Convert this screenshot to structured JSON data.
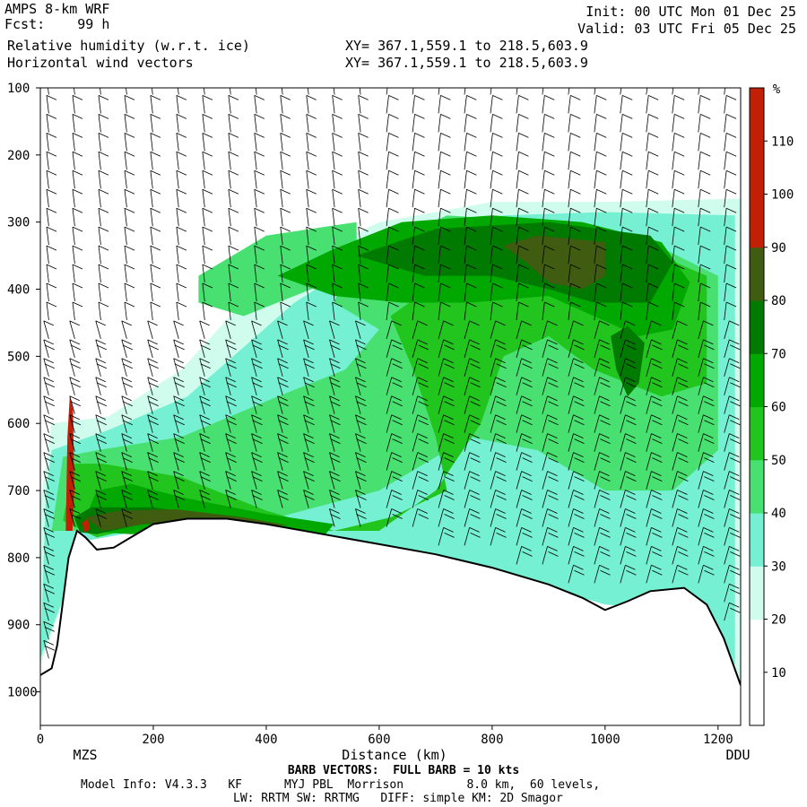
{
  "header": {
    "model": "AMPS 8-km WRF",
    "forecast": "Fcst:    99 h",
    "field1": "Relative humidity (w.r.t. ice)",
    "field2": "Horizontal wind vectors",
    "init": "Init: 00 UTC Mon 01 Dec 25",
    "valid": "Valid: 03 UTC Fri 05 Dec 25",
    "xy1": "XY= 367.1,559.1 to 218.5,603.9",
    "xy2": "XY= 367.1,559.1 to 218.5,603.9"
  },
  "footer": {
    "barb_note": "BARB VECTORS:  FULL BARB = 10 kts",
    "model_info_1": "Model Info: V4.3.3   KF      MYJ PBL  Morrison         8.0 km,  60 levels,",
    "model_info_2": "LW: RRTM SW: RRTMG   DIFF: simple KM: 2D Smagor"
  },
  "chart_data": {
    "type": "heatmap",
    "title": "Relative humidity (w.r.t. ice)",
    "xlabel": "Distance (km)",
    "ylabel": "",
    "xlim": [
      0,
      1240
    ],
    "ylim": [
      1050,
      100
    ],
    "x_ticks": [
      "0",
      "200",
      "400",
      "600",
      "800",
      "1000",
      "1200"
    ],
    "y_ticks": [
      "100",
      "200",
      "300",
      "400",
      "500",
      "600",
      "700",
      "800",
      "900",
      "1000"
    ],
    "x_endpoints": {
      "left": "MZS",
      "right": "DDU"
    },
    "colorbar": {
      "unit": "%",
      "ticks": [
        "10",
        "20",
        "30",
        "40",
        "50",
        "60",
        "70",
        "80",
        "90",
        "100",
        "110"
      ],
      "levels": [
        0,
        30,
        40,
        50,
        60,
        70,
        80,
        90,
        100,
        110
      ],
      "colors": [
        "#ffffff",
        "#cffced",
        "#75f0d2",
        "#48e070",
        "#22c41e",
        "#00a800",
        "#007a00",
        "#3f5c11",
        "#c22006"
      ]
    },
    "terrain_profile": [
      {
        "x": 0,
        "p": 975
      },
      {
        "x": 20,
        "p": 965
      },
      {
        "x": 30,
        "p": 930
      },
      {
        "x": 50,
        "p": 800
      },
      {
        "x": 65,
        "p": 760
      },
      {
        "x": 80,
        "p": 770
      },
      {
        "x": 100,
        "p": 788
      },
      {
        "x": 130,
        "p": 785
      },
      {
        "x": 160,
        "p": 770
      },
      {
        "x": 200,
        "p": 750
      },
      {
        "x": 260,
        "p": 742
      },
      {
        "x": 330,
        "p": 742
      },
      {
        "x": 400,
        "p": 750
      },
      {
        "x": 500,
        "p": 765
      },
      {
        "x": 600,
        "p": 780
      },
      {
        "x": 700,
        "p": 795
      },
      {
        "x": 800,
        "p": 815
      },
      {
        "x": 900,
        "p": 840
      },
      {
        "x": 960,
        "p": 860
      },
      {
        "x": 1000,
        "p": 878
      },
      {
        "x": 1040,
        "p": 865
      },
      {
        "x": 1080,
        "p": 850
      },
      {
        "x": 1140,
        "p": 845
      },
      {
        "x": 1180,
        "p": 870
      },
      {
        "x": 1210,
        "p": 920
      },
      {
        "x": 1240,
        "p": 990
      }
    ],
    "rh_regions": [
      {
        "rh": 35,
        "poly": [
          [
            0,
            960
          ],
          [
            0,
            720
          ],
          [
            20,
            600
          ],
          [
            120,
            590
          ],
          [
            250,
            520
          ],
          [
            400,
            380
          ],
          [
            600,
            300
          ],
          [
            800,
            270
          ],
          [
            1000,
            270
          ],
          [
            1240,
            265
          ],
          [
            1240,
            990
          ],
          [
            1180,
            870
          ],
          [
            1040,
            865
          ],
          [
            900,
            840
          ],
          [
            700,
            800
          ],
          [
            400,
            752
          ],
          [
            200,
            752
          ],
          [
            80,
            770
          ]
        ]
      },
      {
        "rh": 45,
        "poly": [
          [
            0,
            950
          ],
          [
            10,
            700
          ],
          [
            20,
            640
          ],
          [
            120,
            610
          ],
          [
            260,
            560
          ],
          [
            450,
            420
          ],
          [
            620,
            330
          ],
          [
            820,
            290
          ],
          [
            1000,
            285
          ],
          [
            1230,
            290
          ],
          [
            1230,
            960
          ],
          [
            1170,
            880
          ],
          [
            1000,
            870
          ],
          [
            800,
            820
          ],
          [
            600,
            790
          ],
          [
            400,
            757
          ],
          [
            200,
            757
          ],
          [
            80,
            775
          ]
        ]
      },
      {
        "rh": 55,
        "poly": [
          [
            20,
            760
          ],
          [
            40,
            650
          ],
          [
            100,
            640
          ],
          [
            250,
            620
          ],
          [
            420,
            560
          ],
          [
            540,
            520
          ],
          [
            600,
            460
          ],
          [
            520,
            420
          ],
          [
            560,
            350
          ],
          [
            720,
            290
          ],
          [
            900,
            300
          ],
          [
            1080,
            330
          ],
          [
            1200,
            380
          ],
          [
            1200,
            640
          ],
          [
            1120,
            700
          ],
          [
            1000,
            700
          ],
          [
            880,
            640
          ],
          [
            760,
            620
          ],
          [
            600,
            700
          ],
          [
            420,
            740
          ],
          [
            220,
            740
          ],
          [
            100,
            760
          ]
        ]
      },
      {
        "rh": 55,
        "poly": [
          [
            280,
            380
          ],
          [
            400,
            320
          ],
          [
            560,
            300
          ],
          [
            560,
            360
          ],
          [
            480,
            400
          ],
          [
            360,
            440
          ],
          [
            280,
            420
          ]
        ]
      },
      {
        "rh": 65,
        "poly": [
          [
            40,
            745
          ],
          [
            60,
            660
          ],
          [
            110,
            660
          ],
          [
            250,
            680
          ],
          [
            400,
            730
          ],
          [
            520,
            760
          ],
          [
            620,
            740
          ],
          [
            720,
            700
          ],
          [
            700,
            620
          ],
          [
            660,
            520
          ],
          [
            620,
            440
          ],
          [
            720,
            380
          ],
          [
            880,
            320
          ],
          [
            1040,
            330
          ],
          [
            1180,
            380
          ],
          [
            1180,
            540
          ],
          [
            1100,
            560
          ],
          [
            980,
            520
          ],
          [
            900,
            470
          ],
          [
            820,
            500
          ],
          [
            780,
            600
          ],
          [
            700,
            700
          ],
          [
            600,
            760
          ],
          [
            400,
            760
          ],
          [
            200,
            750
          ],
          [
            100,
            770
          ]
        ]
      },
      {
        "rh": 75,
        "poly": [
          [
            420,
            380
          ],
          [
            520,
            340
          ],
          [
            640,
            300
          ],
          [
            800,
            290
          ],
          [
            960,
            300
          ],
          [
            1100,
            330
          ],
          [
            1150,
            390
          ],
          [
            1120,
            460
          ],
          [
            1060,
            470
          ],
          [
            980,
            440
          ],
          [
            900,
            410
          ],
          [
            760,
            420
          ],
          [
            640,
            420
          ],
          [
            520,
            410
          ]
        ]
      },
      {
        "rh": 75,
        "poly": [
          [
            70,
            760
          ],
          [
            100,
            700
          ],
          [
            160,
            690
          ],
          [
            250,
            710
          ],
          [
            400,
            735
          ],
          [
            520,
            750
          ],
          [
            500,
            770
          ],
          [
            300,
            760
          ],
          [
            160,
            765
          ]
        ]
      },
      {
        "rh": 85,
        "poly": [
          [
            560,
            350
          ],
          [
            700,
            310
          ],
          [
            900,
            300
          ],
          [
            1080,
            320
          ],
          [
            1120,
            360
          ],
          [
            1080,
            420
          ],
          [
            980,
            420
          ],
          [
            900,
            400
          ],
          [
            800,
            380
          ],
          [
            680,
            380
          ]
        ]
      },
      {
        "rh": 85,
        "poly": [
          [
            60,
            740
          ],
          [
            90,
            725
          ],
          [
            200,
            725
          ],
          [
            320,
            740
          ],
          [
            460,
            760
          ],
          [
            520,
            775
          ],
          [
            450,
            775
          ],
          [
            300,
            752
          ],
          [
            180,
            750
          ],
          [
            100,
            765
          ],
          [
            70,
            762
          ]
        ]
      },
      {
        "rh": 85,
        "poly": [
          [
            1010,
            470
          ],
          [
            1040,
            455
          ],
          [
            1070,
            480
          ],
          [
            1060,
            540
          ],
          [
            1040,
            560
          ],
          [
            1020,
            520
          ]
        ]
      },
      {
        "rh": 95,
        "poly": [
          [
            820,
            335
          ],
          [
            880,
            320
          ],
          [
            940,
            325
          ],
          [
            1000,
            330
          ],
          [
            1000,
            380
          ],
          [
            960,
            400
          ],
          [
            900,
            390
          ],
          [
            860,
            360
          ]
        ]
      },
      {
        "rh": 95,
        "poly": [
          [
            80,
            740
          ],
          [
            140,
            730
          ],
          [
            240,
            728
          ],
          [
            360,
            740
          ],
          [
            440,
            752
          ],
          [
            330,
            750
          ],
          [
            200,
            748
          ],
          [
            110,
            760
          ]
        ]
      },
      {
        "rh": 115,
        "poly": [
          [
            45,
            760
          ],
          [
            48,
            620
          ],
          [
            52,
            560
          ],
          [
            58,
            580
          ],
          [
            60,
            700
          ],
          [
            57,
            760
          ]
        ]
      },
      {
        "rh": 115,
        "poly": [
          [
            74,
            748
          ],
          [
            84,
            742
          ],
          [
            88,
            758
          ],
          [
            78,
            762
          ]
        ]
      },
      {
        "rh": 115,
        "poly": [
          [
            1240,
            100
          ],
          [
            1240,
            100
          ]
        ]
      }
    ]
  }
}
